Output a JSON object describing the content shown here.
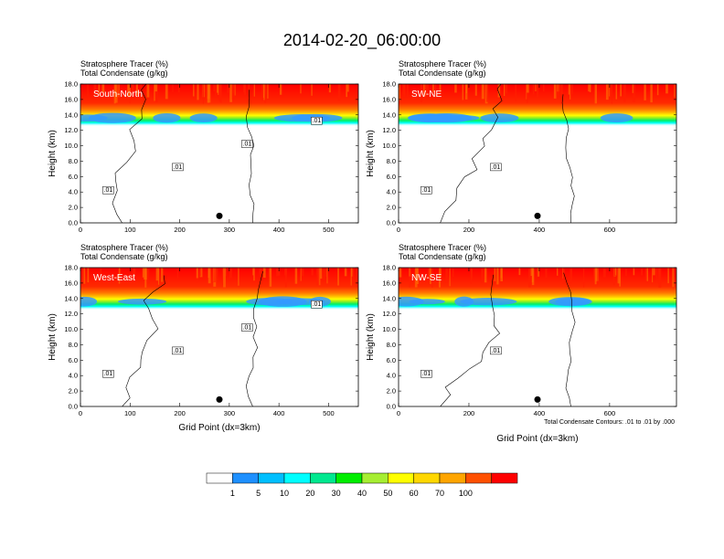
{
  "chart_data": {
    "title": "2014-02-20_06:00:00",
    "panels": [
      {
        "name": "South-North",
        "left_header": [
          "Stratosphere Tracer   (%)",
          "Total Condensate   (g/kg)"
        ],
        "x_ticks": [
          0,
          100,
          200,
          300,
          400,
          500
        ],
        "xmax": 560,
        "y_ticks": [
          "0.0",
          "2.0",
          "4.0",
          "6.0",
          "8.0",
          "10.0",
          "12.0",
          "14.0",
          "16.0",
          "18.0"
        ],
        "ylabel": "Height (km)",
        "xlabel": "",
        "contour_labels": [
          ".01",
          ".01",
          ".01",
          ".01"
        ],
        "marker_x": 280
      },
      {
        "name": "SW-NE",
        "left_header": [
          "Stratosphere Tracer   (%)",
          "Total Condensate   (g/kg)"
        ],
        "x_ticks": [
          0,
          200,
          400,
          600
        ],
        "xmax": 790,
        "y_ticks": [
          "0.0",
          "2.0",
          "4.0",
          "6.0",
          "8.0",
          "10.0",
          "12.0",
          "14.0",
          "16.0",
          "18.0"
        ],
        "ylabel": "Height (km)",
        "xlabel": "",
        "contour_labels": [
          ".01",
          ".01"
        ],
        "marker_x": 395
      },
      {
        "name": "West-East",
        "left_header": [
          "Stratosphere Tracer   (%)",
          "Total Condensate   (g/kg)"
        ],
        "x_ticks": [
          0,
          100,
          200,
          300,
          400,
          500
        ],
        "xmax": 560,
        "y_ticks": [
          "0.0",
          "2.0",
          "4.0",
          "6.0",
          "8.0",
          "10.0",
          "12.0",
          "14.0",
          "16.0",
          "18.0"
        ],
        "ylabel": "Height (km)",
        "xlabel": "Grid Point (dx=3km)",
        "contour_labels": [
          ".01",
          ".01",
          ".01",
          ".01"
        ],
        "marker_x": 280
      },
      {
        "name": "NW-SE",
        "left_header": [
          "Stratosphere Tracer   (%)",
          "Total Condensate   (g/kg)"
        ],
        "x_ticks": [
          0,
          200,
          400,
          600
        ],
        "xmax": 790,
        "y_ticks": [
          "0.0",
          "2.0",
          "4.0",
          "6.0",
          "8.0",
          "10.0",
          "12.0",
          "14.0",
          "16.0",
          "18.0"
        ],
        "ylabel": "Height (km)",
        "xlabel": "Grid Point (dx=3km)",
        "contour_labels": [
          ".01",
          ".01"
        ],
        "marker_x": 395
      }
    ],
    "contour_note": "Total Condensate Contours: .01 to .01 by .000",
    "colorbar": {
      "labels": [
        "1",
        "5",
        "10",
        "20",
        "30",
        "40",
        "50",
        "60",
        "70",
        "100"
      ],
      "colors": [
        "#ffffff",
        "#1e90ff",
        "#00bfff",
        "#00ffff",
        "#00e88f",
        "#00ee00",
        "#a6ee32",
        "#ffff00",
        "#ffd700",
        "#ffa500",
        "#ff5000",
        "#ff0000"
      ]
    }
  }
}
